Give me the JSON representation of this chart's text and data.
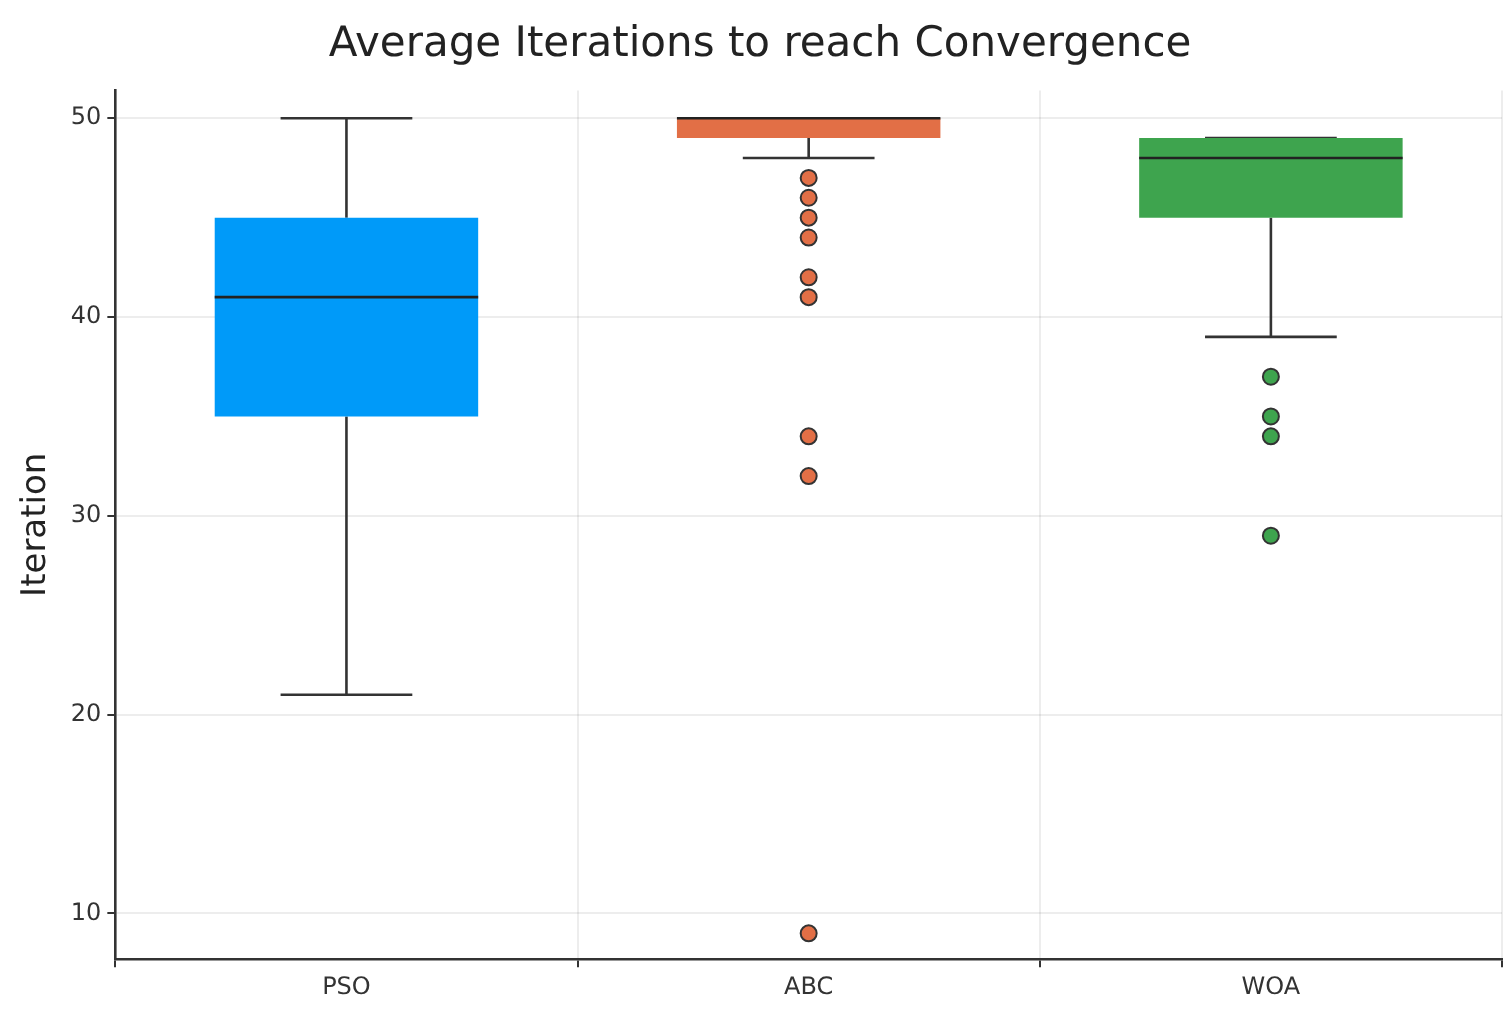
{
  "chart_data": {
    "type": "box",
    "title": "Average Iterations to reach Convergence",
    "ylabel": "Iteration",
    "categories": [
      "PSO",
      "ABC",
      "WOA"
    ],
    "colors": [
      "#009af9",
      "#e26f46",
      "#3ea44e"
    ],
    "boxes": [
      {
        "low": 21,
        "q1": 35,
        "median": 41,
        "q3": 45,
        "high": 50
      },
      {
        "low": 48,
        "q1": 49,
        "median": 50,
        "q3": 50,
        "high": 50,
        "outliers": [
          47,
          46,
          45,
          44,
          42,
          41,
          34,
          32,
          9
        ]
      },
      {
        "low": 39,
        "q1": 45,
        "median": 48,
        "q3": 49,
        "high": 49,
        "outliers": [
          37,
          35,
          34,
          29
        ]
      }
    ],
    "ylim": [
      7.7,
      51.4
    ],
    "yticks": [
      10,
      20,
      30,
      40,
      50
    ],
    "grid": true,
    "legend": false
  }
}
